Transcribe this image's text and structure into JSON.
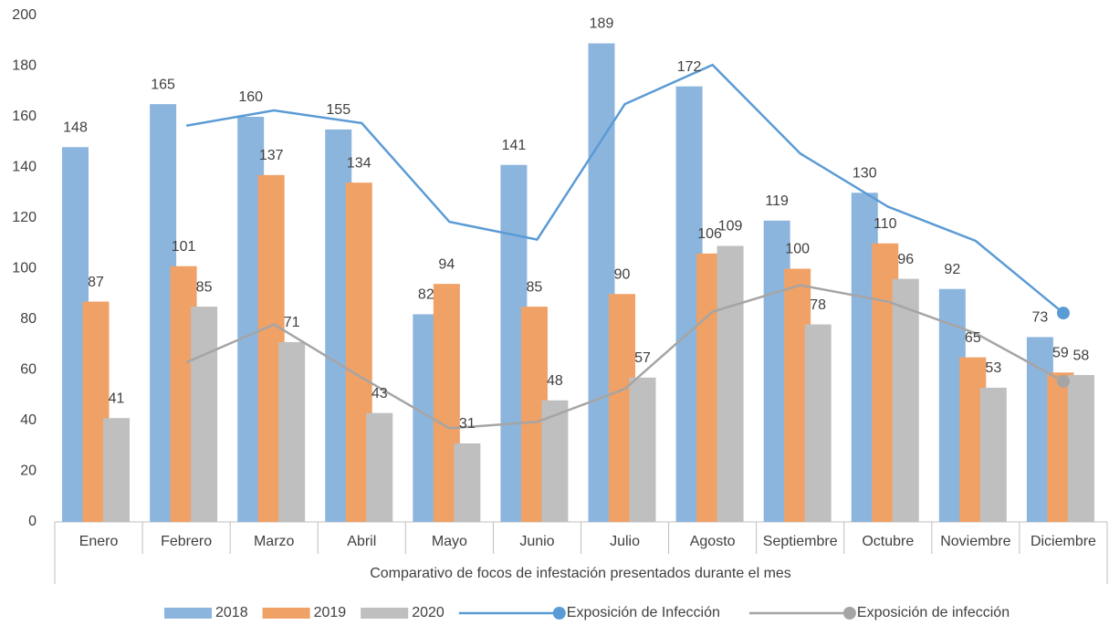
{
  "chart_data": {
    "type": "bar",
    "x_axis_title": "Comparativo de focos de infestación presentados durante el mes",
    "categories": [
      "Enero",
      "Febrero",
      "Marzo",
      "Abril",
      "Mayo",
      "Junio",
      "Julio",
      "Agosto",
      "Septiembre",
      "Octubre",
      "Noviembre",
      "Diciembre"
    ],
    "series": [
      {
        "name": "2018",
        "color": "#8cb5de",
        "values": [
          148,
          165,
          160,
          155,
          82,
          141,
          189,
          172,
          119,
          130,
          92,
          73
        ]
      },
      {
        "name": "2019",
        "color": "#f0a166",
        "values": [
          87,
          101,
          137,
          134,
          94,
          85,
          90,
          106,
          100,
          110,
          65,
          59
        ]
      },
      {
        "name": "2020",
        "color": "#bfbfbf",
        "values": [
          41,
          85,
          71,
          43,
          31,
          48,
          57,
          109,
          78,
          96,
          53,
          58
        ]
      },
      {
        "name": "Exposición de Infección",
        "type": "line",
        "color": "#5b9bd5",
        "values": [
          null,
          156.5,
          162.5,
          157.5,
          118.5,
          111.5,
          165,
          180.5,
          145.5,
          124.5,
          111,
          82.5
        ]
      },
      {
        "name": "Exposición de infección",
        "type": "line",
        "color": "#a5a5a5",
        "values": [
          null,
          63,
          78,
          57,
          37,
          39.5,
          52.5,
          83,
          93.5,
          87,
          74.5,
          55.5
        ]
      }
    ],
    "ylim": [
      0,
      200
    ],
    "yticks": [
      0,
      20,
      40,
      60,
      80,
      100,
      120,
      140,
      160,
      180,
      200
    ],
    "grid": false,
    "legend": "bottom"
  }
}
